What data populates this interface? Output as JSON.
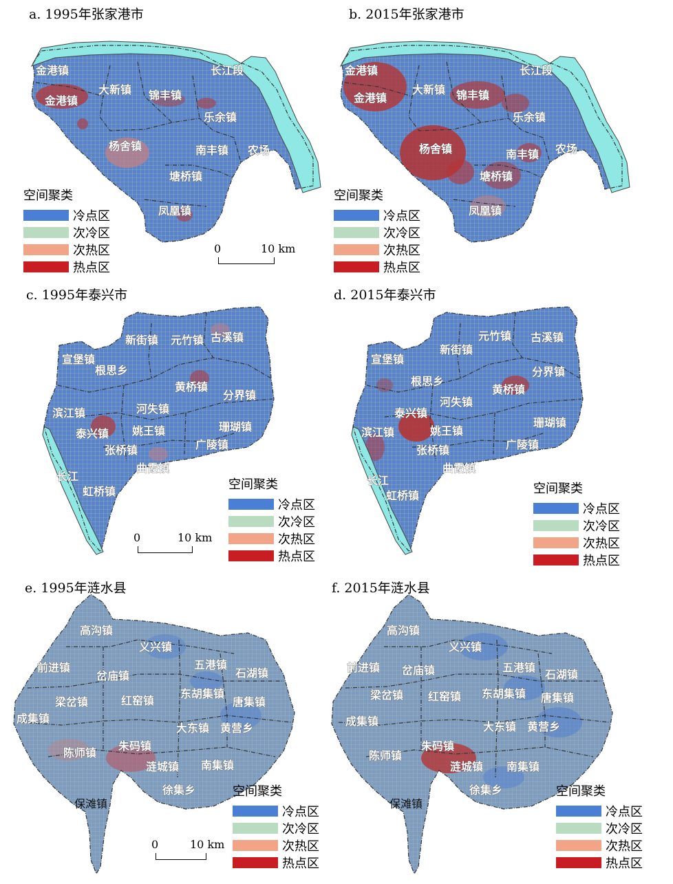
{
  "legend": {
    "title": "空间聚类",
    "items": [
      {
        "label": "冷点区",
        "color": "#4a7fd6"
      },
      {
        "label": "次冷区",
        "color": "#b9dbc0"
      },
      {
        "label": "次热区",
        "color": "#f2a487"
      },
      {
        "label": "热点区",
        "color": "#c81d22"
      }
    ]
  },
  "scale": {
    "zero": "0",
    "end": "10 km"
  },
  "palette": {
    "cold": "#5280cf",
    "subcold": "#a9c4c0",
    "subhot": "#cf8f87",
    "hot": "#b53434",
    "river": "#8fe8e4"
  },
  "panels": [
    {
      "title": "a. 1995年张家港市",
      "towns": [
        "金港镇",
        "金港镇",
        "大新镇",
        "锦丰镇",
        "长江段",
        "乐余镇",
        "杨舍镇",
        "南丰镇",
        "农场",
        "塘桥镇",
        "凤凰镇"
      ]
    },
    {
      "title": "b. 2015年张家港市",
      "towns": [
        "金港镇",
        "金港镇",
        "大新镇",
        "锦丰镇",
        "长江段",
        "乐余镇",
        "杨舍镇",
        "南丰镇",
        "农场",
        "塘桥镇",
        "凤凰镇"
      ]
    },
    {
      "title": "c. 1995年泰兴市",
      "towns": [
        "新街镇",
        "元竹镇",
        "古溪镇",
        "宣堡镇",
        "根思乡",
        "黄桥镇",
        "分界镇",
        "滨江镇",
        "河失镇",
        "泰兴镇",
        "姚王镇",
        "珊瑚镇",
        "广陵镇",
        "张桥镇",
        "曲霞镇",
        "长江",
        "虹桥镇"
      ]
    },
    {
      "title": "d. 2015年泰兴市",
      "towns": [
        "元竹镇",
        "古溪镇",
        "新街镇",
        "宣堡镇",
        "根思乡",
        "分界镇",
        "黄桥镇",
        "泰兴镇",
        "河失镇",
        "珊瑚镇",
        "滨江镇",
        "姚王镇",
        "广陵镇",
        "张桥镇",
        "曲霞镇",
        "长江",
        "虹桥镇"
      ]
    },
    {
      "title": "e. 1995年涟水县",
      "towns": [
        "高沟镇",
        "义兴镇",
        "前进镇",
        "五港镇",
        "石湖镇",
        "岔庙镇",
        "东胡集镇",
        "梁岔镇",
        "红窑镇",
        "唐集镇",
        "成集镇",
        "大东镇",
        "黄营乡",
        "朱码镇",
        "陈师镇",
        "涟城镇",
        "南集镇",
        "徐集乡",
        "保滩镇"
      ]
    },
    {
      "title": "f. 2015年涟水县",
      "towns": [
        "高沟镇",
        "义兴镇",
        "前进镇",
        "岔庙镇",
        "五港镇",
        "石湖镇",
        "梁岔镇",
        "红窑镇",
        "东胡集镇",
        "唐集镇",
        "成集镇",
        "大东镇",
        "黄营乡",
        "朱码镇",
        "陈师镇",
        "涟城镇",
        "南集镇",
        "徐集乡",
        "保滩镇"
      ]
    }
  ]
}
